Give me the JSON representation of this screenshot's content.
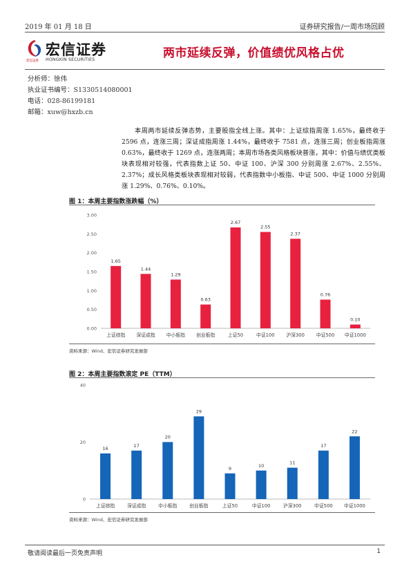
{
  "header": {
    "date": "2019 年 01 月 18 日",
    "report_type": "证券研究报告/一周市场回顾"
  },
  "logo": {
    "name_cn": "宏信证券",
    "name_en": "HONGKIN SECURITIES",
    "small_text": "宏信证券",
    "brand_color": "#c81e2d"
  },
  "title": "两市延续反弹，价值绩优风格占优",
  "analyst": {
    "name": "分析师：徐伟",
    "license": "执业证书编号：S1330514080001",
    "phone": "电话：028-86199181",
    "email": "邮箱：xuw@hxzb.cn"
  },
  "summary": "本周两市延续反弹态势，主要股指全线上涨。其中：上证综指周涨 1.65%，最终收于 2596 点，连涨三周；深证成指周涨 1.44%，最终收于 7581 点，连涨三周；创业板指周涨 0.63%，最终收于 1269 点，连涨两周；本周市场各类风格板块普涨，其中：价值与绩优类板块表现相对较强，代表指数上证 50、中证 100、沪深 300 分别周涨 2.67%、2.55%、2.37%；成长风格类板块表现相对较弱，代表指数中小板指、中证 500、中证 1000 分别周涨 1.29%、0.76%、0.10%。",
  "figures": [
    {
      "title": "图 1：本周主要指数涨跌幅（%）",
      "source": "资料来源：Wind、宏信证券研究发展部"
    },
    {
      "title": "图 2：本周主要指数滚定 PE（TTM）",
      "source": "资料来源：Wind、宏信证券研究发展部"
    }
  ],
  "chart_data": [
    {
      "type": "bar",
      "title": "图 1：本周主要指数涨跌幅（%）",
      "categories": [
        "上证综指",
        "深证成指",
        "中小板指",
        "创业板指",
        "上证50",
        "中证100",
        "沪深300",
        "中证500",
        "中证1000"
      ],
      "values": [
        1.65,
        1.44,
        1.29,
        0.63,
        2.67,
        2.55,
        2.37,
        0.76,
        0.1
      ],
      "value_labels": [
        "1.65",
        "1.44",
        "1.29",
        "0.63",
        "2.67",
        "2.55",
        "2.37",
        "0.76",
        "0.10"
      ],
      "ylim": [
        0,
        3.0
      ],
      "yticks": [
        "0.00",
        "0.50",
        "1.00",
        "1.50",
        "2.00",
        "2.50",
        "3.00"
      ],
      "ytick_values": [
        0,
        0.5,
        1.0,
        1.5,
        2.0,
        2.5,
        3.0
      ],
      "grid": false,
      "color": "#e8213f"
    },
    {
      "type": "bar",
      "title": "图 2：本周主要指数滚定 PE（TTM）",
      "categories": [
        "上证综指",
        "深证成指",
        "中小板指",
        "创业板指",
        "上证50",
        "中证100",
        "沪深300",
        "中证500",
        "中证1000"
      ],
      "values": [
        16,
        17,
        20,
        29,
        9,
        10,
        11,
        17,
        22
      ],
      "value_labels": [
        "16",
        "17",
        "20",
        "29",
        "9",
        "10",
        "11",
        "17",
        "22"
      ],
      "ylim": [
        0,
        40
      ],
      "yticks": [
        "0",
        "20",
        "40"
      ],
      "ytick_values": [
        0,
        20,
        40
      ],
      "grid": false,
      "color": "#1565b8"
    }
  ],
  "footer": {
    "disclaimer": "敬请阅读最后一页免责声明",
    "page": "1"
  }
}
